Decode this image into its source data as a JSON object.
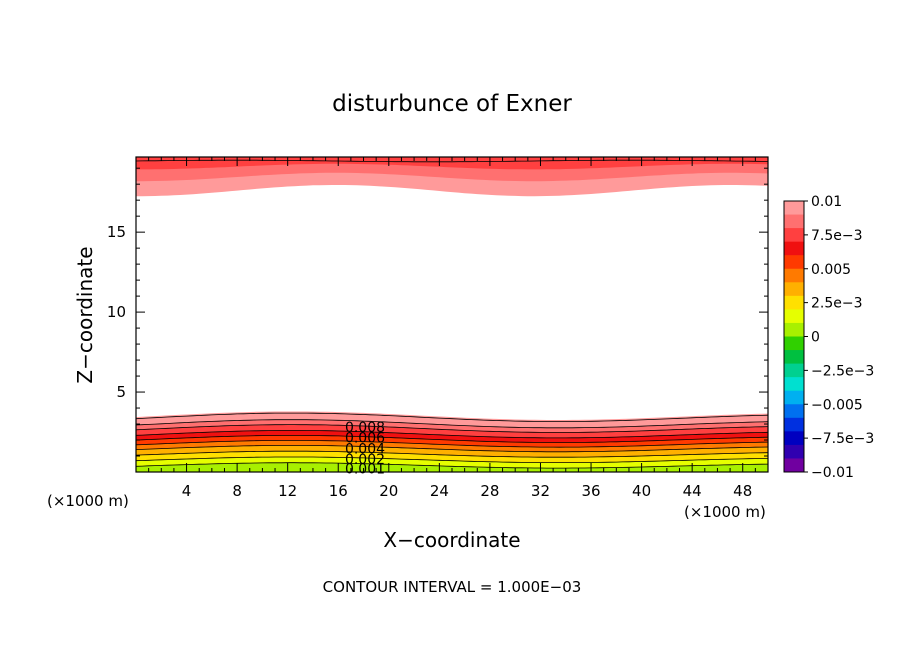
{
  "chart_data": {
    "type": "contour",
    "title": "disturbunce of Exner",
    "xlabel": "X−coordinate",
    "ylabel": "Z−coordinate",
    "x_unit_left": "(×1000 m)",
    "x_unit_right": "(×1000 m)",
    "xlim": [
      0,
      50
    ],
    "ylim": [
      0,
      19.7
    ],
    "x_ticks": [
      "4",
      "8",
      "12",
      "16",
      "20",
      "24",
      "28",
      "32",
      "36",
      "40",
      "44",
      "48"
    ],
    "x_tick_values": [
      4,
      8,
      12,
      16,
      20,
      24,
      28,
      32,
      36,
      40,
      44,
      48
    ],
    "y_ticks": [
      "5",
      "10",
      "15"
    ],
    "y_tick_values": [
      5,
      10,
      15
    ],
    "footer": "CONTOUR INTERVAL = 1.000E−03",
    "colorbar": {
      "labels": [
        "0.01",
        "7.5e−3",
        "0.005",
        "2.5e−3",
        "0",
        "−2.5e−3",
        "−0.005",
        "−7.5e−3",
        "−0.01"
      ],
      "label_values": [
        0.01,
        0.0075,
        0.005,
        0.0025,
        0,
        -0.0025,
        -0.005,
        -0.0075,
        -0.01
      ],
      "levels": [
        0.01,
        0.009,
        0.008,
        0.007,
        0.006,
        0.005,
        0.004,
        0.003,
        0.002,
        0.001,
        0,
        -0.001,
        -0.002,
        -0.003,
        -0.004,
        -0.005,
        -0.006,
        -0.007,
        -0.008,
        -0.009,
        -0.01
      ],
      "colors": [
        "#ff9a9a",
        "#ff7070",
        "#ff4040",
        "#f01010",
        "#ff3a00",
        "#ff7a00",
        "#ffb000",
        "#ffe000",
        "#e6ff00",
        "#a8f000",
        "#30d000",
        "#00c040",
        "#00d090",
        "#00e0d0",
        "#00b0f0",
        "#0070f0",
        "#0030e0",
        "#0000c0",
        "#3000b0",
        "#7000a0"
      ]
    },
    "contour_labels": [
      "0.008",
      "0.006",
      "0.004",
      "0.002",
      "0.001"
    ],
    "contour_label_values": [
      0.008,
      0.006,
      0.004,
      0.002,
      0.001
    ],
    "bottom_layer": {
      "description_levels": [
        0.001,
        0.002,
        0.003,
        0.004,
        0.005,
        0.006,
        0.007,
        0.008,
        0.009,
        0.01
      ],
      "level_heights_at_x0": [
        0.4,
        0.75,
        1.1,
        1.45,
        1.75,
        2.05,
        2.35,
        2.7,
        3.0,
        3.4
      ],
      "top_of_layer_z": 3.5
    },
    "top_layer": {
      "levels": [
        0.01,
        0.009,
        0.008
      ],
      "lower_edge_z_at_x0": 17.6,
      "top_z": 19.7
    },
    "white_region": "values below 0.001 contour interval (near 0) in middle troposphere"
  }
}
